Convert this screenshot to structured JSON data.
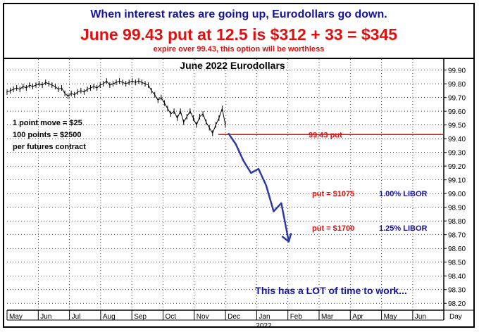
{
  "header": {
    "line1": "When interest rates are going up, Eurodollars go down.",
    "line2": "June 99.43 put at 12.5 is $312 + 33 = $345",
    "line3": "expire over 99.43, this option will be worthless"
  },
  "colors": {
    "blue": "#1414a0",
    "red": "#e01010",
    "grid": "#000000"
  },
  "chart_data": {
    "type": "line",
    "title": "June 2022 Eurodollars",
    "ylim": [
      98.15,
      99.98
    ],
    "yticks": [
      "99.90",
      "99.80",
      "99.70",
      "99.60",
      "99.50",
      "99.40",
      "99.30",
      "99.20",
      "99.10",
      "99.00",
      "98.90",
      "98.80",
      "98.70",
      "98.60",
      "98.50",
      "98.40",
      "98.30",
      "98.20"
    ],
    "months": [
      "May",
      "Jun",
      "Jul",
      "Aug",
      "Sep",
      "Oct",
      "Nov",
      "Dec",
      "Jan",
      "Feb",
      "Mar",
      "Apr",
      "May",
      "Jun"
    ],
    "year_label": "2022",
    "axis_unit": "Day",
    "series": [
      {
        "values": [
          99.74,
          99.75,
          99.76,
          99.77,
          99.76,
          99.78,
          99.77,
          99.79,
          99.78,
          99.79,
          99.8,
          99.79,
          99.81,
          99.8,
          99.79,
          99.78,
          99.76,
          99.77,
          99.73,
          99.71,
          99.73,
          99.72,
          99.74,
          99.75,
          99.74,
          99.76,
          99.77,
          99.78,
          99.77,
          99.79,
          99.8,
          99.82,
          99.79,
          99.8,
          99.81,
          99.82,
          99.81,
          99.8,
          99.81,
          99.82,
          99.81,
          99.82,
          99.81,
          99.8,
          99.79,
          99.75,
          99.72,
          99.68,
          99.7,
          99.66,
          99.62,
          99.58,
          99.6,
          99.55,
          99.6,
          99.52,
          99.56,
          99.6,
          99.55,
          99.5,
          99.56,
          99.58,
          99.52,
          99.48,
          99.44,
          99.5,
          99.55,
          99.62,
          99.5
        ]
      }
    ],
    "projection": [
      99.44,
      99.36,
      99.24,
      99.15,
      99.18,
      99.06,
      98.87,
      98.93,
      98.65
    ],
    "reference_line": {
      "value": 99.43,
      "label": "99.43 put"
    },
    "notes": [
      "1 point move = $25",
      "100 points = $2500",
      "per futures contract"
    ],
    "put_labels": [
      {
        "put": "put = $1075",
        "libor": "1.00% LIBOR",
        "value": 99.0
      },
      {
        "put": "put = $1700",
        "libor": "1.25% LIBOR",
        "value": 98.75
      }
    ],
    "footer": "This has a LOT of time to work..."
  }
}
